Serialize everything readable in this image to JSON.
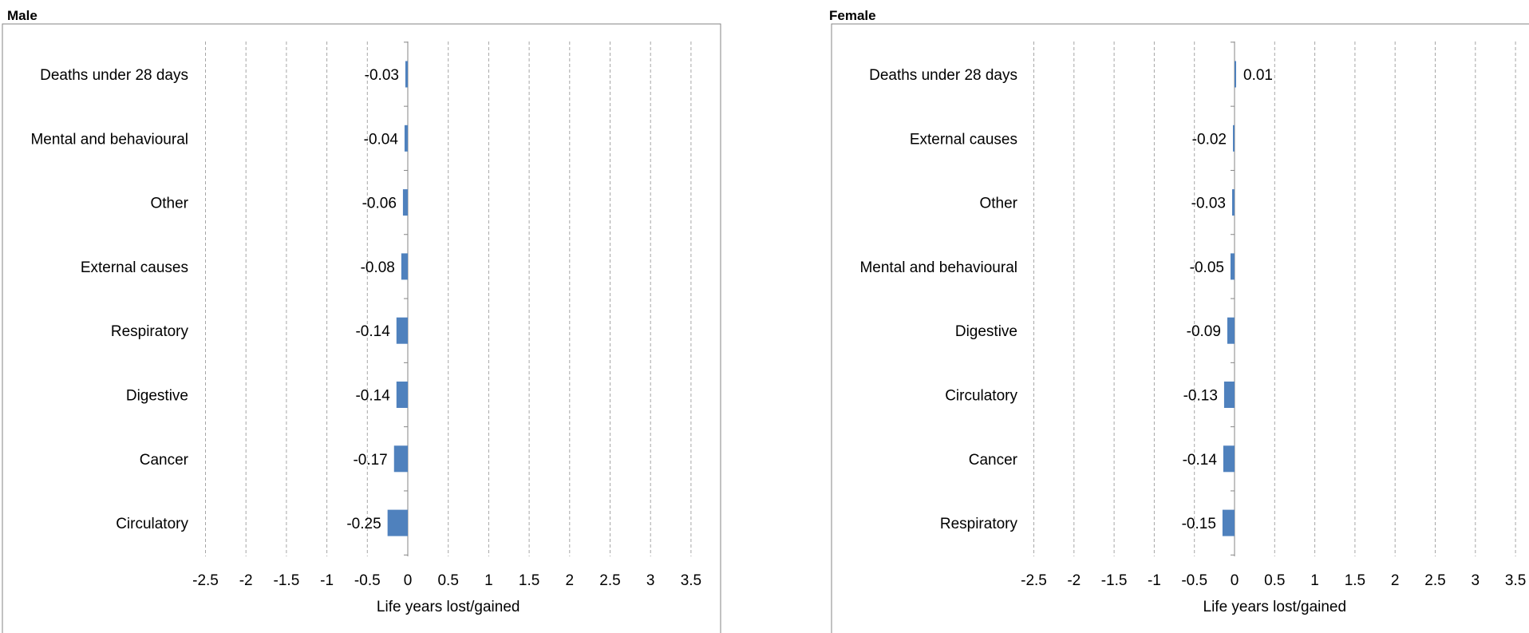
{
  "chart_data": [
    {
      "type": "bar",
      "orientation": "horizontal",
      "title": "Male",
      "xlabel": "Life years lost/gained",
      "xlim": [
        -2.5,
        3.5
      ],
      "xticks": [
        "-2.5",
        "-2",
        "-1.5",
        "-1",
        "-0.5",
        "0",
        "0.5",
        "1",
        "1.5",
        "2",
        "2.5",
        "3",
        "3.5"
      ],
      "grid": true,
      "categories": [
        "Deaths under 28 days",
        "Mental and behavioural",
        "Other",
        "External causes",
        "Respiratory",
        "Digestive",
        "Cancer",
        "Circulatory"
      ],
      "values": [
        -0.03,
        -0.04,
        -0.06,
        -0.08,
        -0.14,
        -0.14,
        -0.17,
        -0.25
      ],
      "data_labels": [
        "-0.03",
        "-0.04",
        "-0.06",
        "-0.08",
        "-0.14",
        "-0.14",
        "-0.17",
        "-0.25"
      ],
      "color": "#4F81BD"
    },
    {
      "type": "bar",
      "orientation": "horizontal",
      "title": "Female",
      "xlabel": "Life years lost/gained",
      "xlim": [
        -2.5,
        3.5
      ],
      "xticks": [
        "-2.5",
        "-2",
        "-1.5",
        "-1",
        "-0.5",
        "0",
        "0.5",
        "1",
        "1.5",
        "2",
        "2.5",
        "3",
        "3.5"
      ],
      "grid": true,
      "categories": [
        "Deaths under 28 days",
        "External causes",
        "Other",
        "Mental and behavioural",
        "Digestive",
        "Circulatory",
        "Cancer",
        "Respiratory"
      ],
      "values": [
        0.01,
        -0.02,
        -0.03,
        -0.05,
        -0.09,
        -0.13,
        -0.14,
        -0.15
      ],
      "data_labels": [
        "0.01",
        "-0.02",
        "-0.03",
        "-0.05",
        "-0.09",
        "-0.13",
        "-0.14",
        "-0.15"
      ],
      "color": "#4F81BD"
    }
  ]
}
